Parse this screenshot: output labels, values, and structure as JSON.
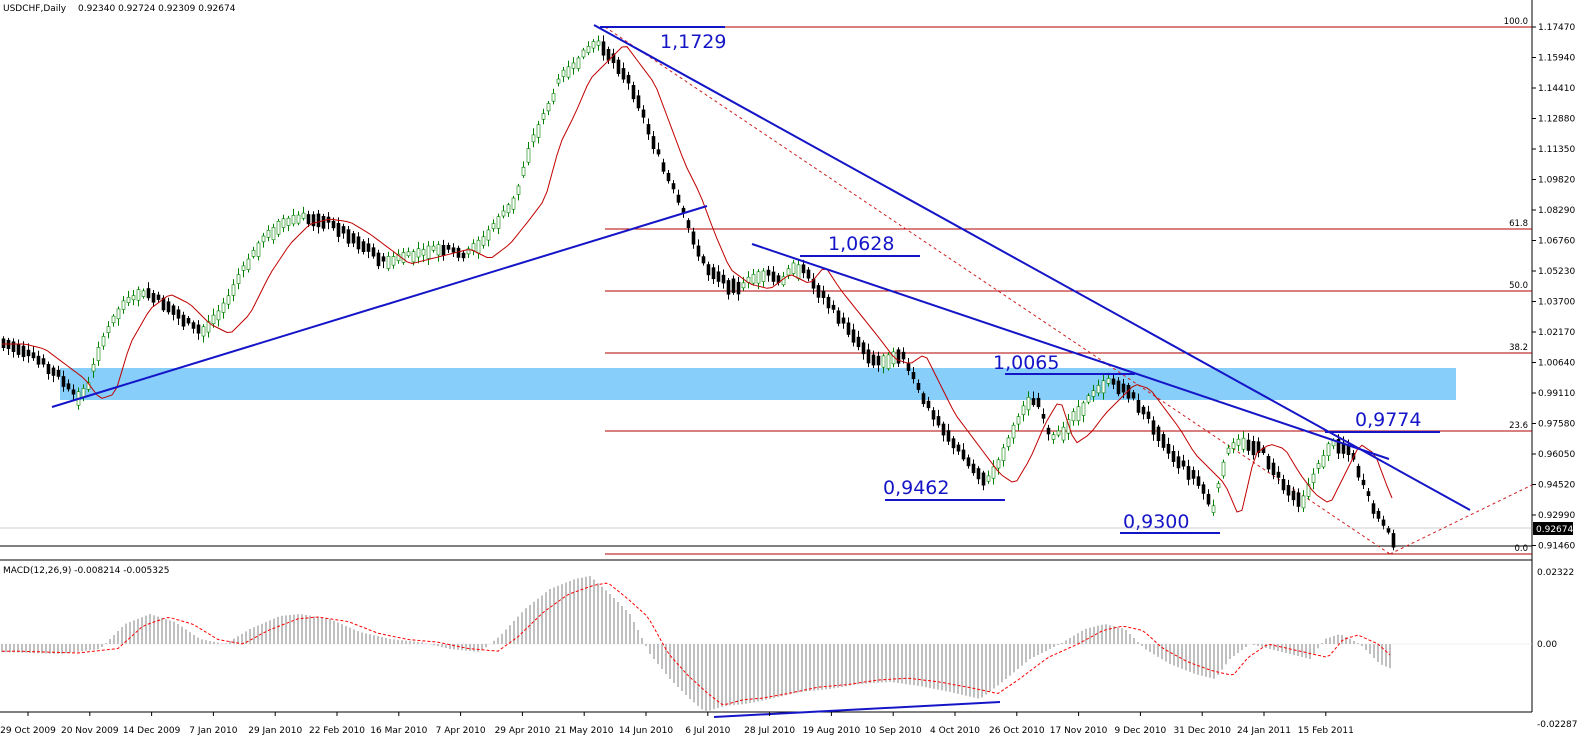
{
  "header": {
    "symbol_tf": "USDCHF,Daily",
    "ohlc": "0.92340 0.92724 0.92309 0.92674"
  },
  "price_axis": {
    "ticks": [
      "1.17470",
      "1.15940",
      "1.14410",
      "1.12880",
      "1.11350",
      "1.09820",
      "1.08290",
      "1.06760",
      "1.05230",
      "1.03700",
      "1.02170",
      "1.00640",
      "0.99110",
      "0.97580",
      "0.96050",
      "0.94520",
      "0.92990",
      "0.91460"
    ],
    "current_price": "0.92674"
  },
  "macd": {
    "label": "MACD(12,26,9) -0.008214 -0.005325",
    "ticks": [
      "0.02322",
      "0.00",
      "-0.02287"
    ]
  },
  "time_axis": {
    "labels": [
      "29 Oct 2009",
      "20 Nov 2009",
      "14 Dec 2009",
      "7 Jan 2010",
      "29 Jan 2010",
      "22 Feb 2010",
      "16 Mar 2010",
      "7 Apr 2010",
      "29 Apr 2010",
      "21 May 2010",
      "14 Jun 2010",
      "6 Jul 2010",
      "28 Jul 2010",
      "19 Aug 2010",
      "10 Sep 2010",
      "4 Oct 2010",
      "26 Oct 2010",
      "17 Nov 2010",
      "9 Dec 2010",
      "31 Dec 2010",
      "24 Jan 2011",
      "15 Feb 2011"
    ]
  },
  "fibonacci": {
    "levels": [
      "100.0",
      "61.8",
      "50.0",
      "38.2",
      "23.6",
      "0.0"
    ]
  },
  "annotations": {
    "high": "1,1729",
    "l1": "1,0628",
    "l2": "1,0065",
    "l3": "0,9774",
    "l4": "0,9462",
    "l5": "0,9300"
  },
  "colors": {
    "bull_candle": "#ffffff",
    "bear_candle": "#000000",
    "up_wick": "#008000",
    "moving_average": "#c00000",
    "trendline": "#1515c8",
    "fib_level": "#b00000",
    "support_zone": "#87cefa",
    "macd_hist": "#c0c0c0",
    "macd_signal": "#ff0000"
  }
}
